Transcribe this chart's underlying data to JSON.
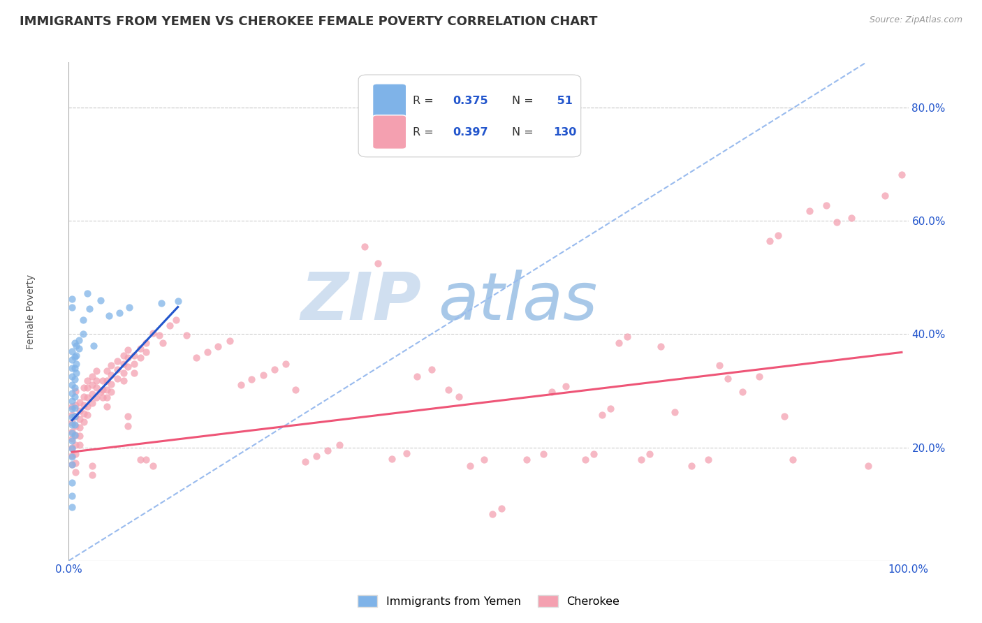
{
  "title": "IMMIGRANTS FROM YEMEN VS CHEROKEE FEMALE POVERTY CORRELATION CHART",
  "source_text": "Source: ZipAtlas.com",
  "ylabel": "Female Poverty",
  "xlim": [
    0,
    1.0
  ],
  "ylim": [
    0,
    0.88
  ],
  "ytick_positions": [
    0.2,
    0.4,
    0.6,
    0.8
  ],
  "ytick_labels": [
    "20.0%",
    "40.0%",
    "60.0%",
    "80.0%"
  ],
  "title_fontsize": 13,
  "axis_label_fontsize": 10,
  "tick_fontsize": 11,
  "watermark_zip": "ZIP",
  "watermark_atlas": "atlas",
  "watermark_color_zip": "#d0dff0",
  "watermark_color_atlas": "#a8c8e8",
  "blue_color": "#7fb3e8",
  "pink_color": "#f4a0b0",
  "blue_line_color": "#2255cc",
  "pink_line_color": "#ee5577",
  "dashed_line_color": "#99bbee",
  "background_color": "#ffffff",
  "legend_n_color": "#2255cc",
  "blue_scatter": [
    [
      0.004,
      0.462
    ],
    [
      0.004,
      0.448
    ],
    [
      0.004,
      0.37
    ],
    [
      0.004,
      0.355
    ],
    [
      0.004,
      0.34
    ],
    [
      0.004,
      0.325
    ],
    [
      0.004,
      0.31
    ],
    [
      0.004,
      0.296
    ],
    [
      0.004,
      0.282
    ],
    [
      0.004,
      0.268
    ],
    [
      0.004,
      0.254
    ],
    [
      0.004,
      0.24
    ],
    [
      0.004,
      0.226
    ],
    [
      0.004,
      0.212
    ],
    [
      0.004,
      0.198
    ],
    [
      0.004,
      0.184
    ],
    [
      0.004,
      0.17
    ],
    [
      0.004,
      0.138
    ],
    [
      0.004,
      0.115
    ],
    [
      0.004,
      0.095
    ],
    [
      0.007,
      0.385
    ],
    [
      0.007,
      0.36
    ],
    [
      0.007,
      0.34
    ],
    [
      0.007,
      0.32
    ],
    [
      0.007,
      0.305
    ],
    [
      0.007,
      0.29
    ],
    [
      0.007,
      0.27
    ],
    [
      0.007,
      0.255
    ],
    [
      0.007,
      0.24
    ],
    [
      0.007,
      0.222
    ],
    [
      0.009,
      0.38
    ],
    [
      0.009,
      0.362
    ],
    [
      0.009,
      0.348
    ],
    [
      0.009,
      0.332
    ],
    [
      0.012,
      0.39
    ],
    [
      0.012,
      0.375
    ],
    [
      0.017,
      0.425
    ],
    [
      0.017,
      0.4
    ],
    [
      0.022,
      0.472
    ],
    [
      0.025,
      0.445
    ],
    [
      0.03,
      0.38
    ],
    [
      0.038,
      0.46
    ],
    [
      0.048,
      0.432
    ],
    [
      0.06,
      0.438
    ],
    [
      0.072,
      0.448
    ],
    [
      0.11,
      0.455
    ],
    [
      0.13,
      0.458
    ]
  ],
  "pink_scatter": [
    [
      0.004,
      0.272
    ],
    [
      0.004,
      0.258
    ],
    [
      0.004,
      0.244
    ],
    [
      0.004,
      0.228
    ],
    [
      0.004,
      0.215
    ],
    [
      0.004,
      0.2
    ],
    [
      0.004,
      0.186
    ],
    [
      0.004,
      0.17
    ],
    [
      0.008,
      0.3
    ],
    [
      0.008,
      0.275
    ],
    [
      0.008,
      0.255
    ],
    [
      0.008,
      0.238
    ],
    [
      0.008,
      0.222
    ],
    [
      0.008,
      0.205
    ],
    [
      0.008,
      0.188
    ],
    [
      0.008,
      0.172
    ],
    [
      0.008,
      0.156
    ],
    [
      0.013,
      0.28
    ],
    [
      0.013,
      0.265
    ],
    [
      0.013,
      0.25
    ],
    [
      0.013,
      0.235
    ],
    [
      0.013,
      0.22
    ],
    [
      0.013,
      0.205
    ],
    [
      0.018,
      0.305
    ],
    [
      0.018,
      0.29
    ],
    [
      0.018,
      0.275
    ],
    [
      0.018,
      0.26
    ],
    [
      0.018,
      0.245
    ],
    [
      0.022,
      0.318
    ],
    [
      0.022,
      0.305
    ],
    [
      0.022,
      0.288
    ],
    [
      0.022,
      0.272
    ],
    [
      0.022,
      0.258
    ],
    [
      0.028,
      0.325
    ],
    [
      0.028,
      0.31
    ],
    [
      0.028,
      0.295
    ],
    [
      0.028,
      0.278
    ],
    [
      0.028,
      0.168
    ],
    [
      0.028,
      0.152
    ],
    [
      0.033,
      0.335
    ],
    [
      0.033,
      0.318
    ],
    [
      0.033,
      0.305
    ],
    [
      0.033,
      0.288
    ],
    [
      0.038,
      0.298
    ],
    [
      0.04,
      0.318
    ],
    [
      0.04,
      0.302
    ],
    [
      0.04,
      0.288
    ],
    [
      0.045,
      0.335
    ],
    [
      0.045,
      0.318
    ],
    [
      0.045,
      0.302
    ],
    [
      0.045,
      0.288
    ],
    [
      0.045,
      0.272
    ],
    [
      0.05,
      0.345
    ],
    [
      0.05,
      0.328
    ],
    [
      0.05,
      0.312
    ],
    [
      0.05,
      0.298
    ],
    [
      0.058,
      0.352
    ],
    [
      0.058,
      0.338
    ],
    [
      0.058,
      0.322
    ],
    [
      0.065,
      0.362
    ],
    [
      0.065,
      0.348
    ],
    [
      0.065,
      0.332
    ],
    [
      0.065,
      0.318
    ],
    [
      0.07,
      0.372
    ],
    [
      0.07,
      0.358
    ],
    [
      0.07,
      0.342
    ],
    [
      0.07,
      0.255
    ],
    [
      0.07,
      0.238
    ],
    [
      0.078,
      0.362
    ],
    [
      0.078,
      0.348
    ],
    [
      0.078,
      0.332
    ],
    [
      0.085,
      0.375
    ],
    [
      0.085,
      0.358
    ],
    [
      0.085,
      0.178
    ],
    [
      0.092,
      0.385
    ],
    [
      0.092,
      0.368
    ],
    [
      0.092,
      0.178
    ],
    [
      0.1,
      0.402
    ],
    [
      0.1,
      0.168
    ],
    [
      0.108,
      0.398
    ],
    [
      0.112,
      0.385
    ],
    [
      0.12,
      0.415
    ],
    [
      0.128,
      0.425
    ],
    [
      0.14,
      0.398
    ],
    [
      0.152,
      0.358
    ],
    [
      0.165,
      0.368
    ],
    [
      0.178,
      0.378
    ],
    [
      0.192,
      0.388
    ],
    [
      0.205,
      0.31
    ],
    [
      0.218,
      0.32
    ],
    [
      0.232,
      0.328
    ],
    [
      0.245,
      0.338
    ],
    [
      0.258,
      0.348
    ],
    [
      0.27,
      0.302
    ],
    [
      0.282,
      0.175
    ],
    [
      0.295,
      0.185
    ],
    [
      0.308,
      0.195
    ],
    [
      0.322,
      0.205
    ],
    [
      0.352,
      0.555
    ],
    [
      0.368,
      0.525
    ],
    [
      0.385,
      0.18
    ],
    [
      0.402,
      0.19
    ],
    [
      0.415,
      0.325
    ],
    [
      0.432,
      0.338
    ],
    [
      0.452,
      0.302
    ],
    [
      0.465,
      0.29
    ],
    [
      0.478,
      0.168
    ],
    [
      0.495,
      0.178
    ],
    [
      0.505,
      0.082
    ],
    [
      0.515,
      0.092
    ],
    [
      0.545,
      0.178
    ],
    [
      0.565,
      0.188
    ],
    [
      0.575,
      0.298
    ],
    [
      0.592,
      0.308
    ],
    [
      0.615,
      0.178
    ],
    [
      0.625,
      0.188
    ],
    [
      0.635,
      0.258
    ],
    [
      0.645,
      0.268
    ],
    [
      0.655,
      0.385
    ],
    [
      0.665,
      0.395
    ],
    [
      0.682,
      0.178
    ],
    [
      0.692,
      0.188
    ],
    [
      0.705,
      0.378
    ],
    [
      0.722,
      0.262
    ],
    [
      0.742,
      0.168
    ],
    [
      0.762,
      0.178
    ],
    [
      0.775,
      0.345
    ],
    [
      0.785,
      0.322
    ],
    [
      0.802,
      0.298
    ],
    [
      0.822,
      0.325
    ],
    [
      0.835,
      0.565
    ],
    [
      0.845,
      0.575
    ],
    [
      0.852,
      0.255
    ],
    [
      0.862,
      0.178
    ],
    [
      0.882,
      0.618
    ],
    [
      0.902,
      0.628
    ],
    [
      0.915,
      0.598
    ],
    [
      0.932,
      0.605
    ],
    [
      0.952,
      0.168
    ],
    [
      0.972,
      0.645
    ],
    [
      0.992,
      0.682
    ]
  ],
  "blue_trendline_x": [
    0.004,
    0.13
  ],
  "blue_trendline_y": [
    0.248,
    0.448
  ],
  "pink_trendline_x": [
    0.004,
    0.992
  ],
  "pink_trendline_y": [
    0.192,
    0.368
  ],
  "dashed_trendline_x": [
    0.0,
    0.95
  ],
  "dashed_trendline_y": [
    0.0,
    0.88
  ]
}
